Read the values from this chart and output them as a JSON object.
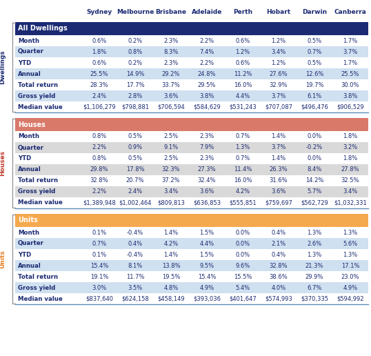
{
  "columns": [
    "Sydney",
    "Melbourne",
    "Brisbane",
    "Adelaide",
    "Perth",
    "Hobart",
    "Darwin",
    "Canberra"
  ],
  "sections": [
    {
      "name": "All Dwellings",
      "header_color": "#1b2a72",
      "header_text_color": "#ffffff",
      "alt_row_color": "#cfe0f0",
      "plain_row_color": "#ffffff",
      "rows": [
        {
          "label": "Month",
          "values": [
            "0.6%",
            "0.2%",
            "2.3%",
            "2.2%",
            "0.6%",
            "1.2%",
            "0.5%",
            "1.7%"
          ]
        },
        {
          "label": "Quarter",
          "values": [
            "1.8%",
            "0.8%",
            "8.3%",
            "7.4%",
            "1.2%",
            "3.4%",
            "0.7%",
            "3.7%"
          ]
        },
        {
          "label": "YTD",
          "values": [
            "0.6%",
            "0.2%",
            "2.3%",
            "2.2%",
            "0.6%",
            "1.2%",
            "0.5%",
            "1.7%"
          ]
        },
        {
          "label": "Annual",
          "values": [
            "25.5%",
            "14.9%",
            "29.2%",
            "24.8%",
            "11.2%",
            "27.6%",
            "12.6%",
            "25.5%"
          ]
        },
        {
          "label": "Total return",
          "values": [
            "28.3%",
            "17.7%",
            "33.7%",
            "29.5%",
            "16.0%",
            "32.9%",
            "19.7%",
            "30.0%"
          ]
        },
        {
          "label": "Gross yield",
          "values": [
            "2.4%",
            "2.8%",
            "3.6%",
            "3.8%",
            "4.4%",
            "3.7%",
            "6.1%",
            "3.8%"
          ]
        },
        {
          "label": "Median value",
          "values": [
            "$1,106,279",
            "$798,881",
            "$706,594",
            "$584,629",
            "$531,243",
            "$707,087",
            "$496,476",
            "$906,529"
          ]
        }
      ]
    },
    {
      "name": "Houses",
      "header_color": "#d9796a",
      "header_text_color": "#ffffff",
      "alt_row_color": "#d9d9d9",
      "plain_row_color": "#ffffff",
      "rows": [
        {
          "label": "Month",
          "values": [
            "0.8%",
            "0.5%",
            "2.5%",
            "2.3%",
            "0.7%",
            "1.4%",
            "0.0%",
            "1.8%"
          ]
        },
        {
          "label": "Quarter",
          "values": [
            "2.2%",
            "0.9%",
            "9.1%",
            "7.9%",
            "1.3%",
            "3.7%",
            "-0.2%",
            "3.2%"
          ]
        },
        {
          "label": "YTD",
          "values": [
            "0.8%",
            "0.5%",
            "2.5%",
            "2.3%",
            "0.7%",
            "1.4%",
            "0.0%",
            "1.8%"
          ]
        },
        {
          "label": "Annual",
          "values": [
            "29.8%",
            "17.8%",
            "32.3%",
            "27.3%",
            "11.4%",
            "26.3%",
            "8.4%",
            "27.8%"
          ]
        },
        {
          "label": "Total return",
          "values": [
            "32.8%",
            "20.7%",
            "37.2%",
            "32.4%",
            "16.0%",
            "31.6%",
            "14.2%",
            "32.5%"
          ]
        },
        {
          "label": "Gross yield",
          "values": [
            "2.2%",
            "2.4%",
            "3.4%",
            "3.6%",
            "4.2%",
            "3.6%",
            "5.7%",
            "3.4%"
          ]
        },
        {
          "label": "Median value",
          "values": [
            "$1,389,948",
            "$1,002,464",
            "$809,813",
            "$636,853",
            "$555,851",
            "$759,697",
            "$562,729",
            "$1,032,331"
          ]
        }
      ]
    },
    {
      "name": "Units",
      "header_color": "#f5a94e",
      "header_text_color": "#ffffff",
      "alt_row_color": "#cfe0f0",
      "plain_row_color": "#ffffff",
      "rows": [
        {
          "label": "Month",
          "values": [
            "0.1%",
            "-0.4%",
            "1.4%",
            "1.5%",
            "0.0%",
            "0.4%",
            "1.3%",
            "1.3%"
          ]
        },
        {
          "label": "Quarter",
          "values": [
            "0.7%",
            "0.4%",
            "4.2%",
            "4.4%",
            "0.0%",
            "2.1%",
            "2.6%",
            "5.6%"
          ]
        },
        {
          "label": "YTD",
          "values": [
            "0.1%",
            "-0.4%",
            "1.4%",
            "1.5%",
            "0.0%",
            "0.4%",
            "1.3%",
            "1.3%"
          ]
        },
        {
          "label": "Annual",
          "values": [
            "15.4%",
            "8.1%",
            "13.8%",
            "9.5%",
            "9.6%",
            "32.8%",
            "21.3%",
            "17.1%"
          ]
        },
        {
          "label": "Total return",
          "values": [
            "19.1%",
            "11.7%",
            "19.5%",
            "15.4%",
            "15.5%",
            "38.6%",
            "29.9%",
            "23.0%"
          ]
        },
        {
          "label": "Gross yield",
          "values": [
            "3.0%",
            "3.5%",
            "4.8%",
            "4.9%",
            "5.4%",
            "4.0%",
            "6.7%",
            "4.9%"
          ]
        },
        {
          "label": "Median value",
          "values": [
            "$837,640",
            "$624,158",
            "$458,149",
            "$393,036",
            "$401,647",
            "$574,993",
            "$370,335",
            "$594,992"
          ]
        }
      ]
    }
  ],
  "col_header_text_color": "#1b2a72",
  "text_color": "#1b2a72",
  "side_label_colors": [
    "#1b2a72",
    "#c0392b",
    "#e67e22"
  ],
  "side_labels": [
    "Dwellings",
    "Houses",
    "Units"
  ],
  "separator_color": "#5b8db8",
  "background_color": "#ffffff",
  "gap_color": "#ffffff",
  "col_header_fontsize": 6.5,
  "section_header_fontsize": 7.0,
  "row_label_fontsize": 6.2,
  "data_fontsize": 6.0,
  "side_label_fontsize": 6.5
}
